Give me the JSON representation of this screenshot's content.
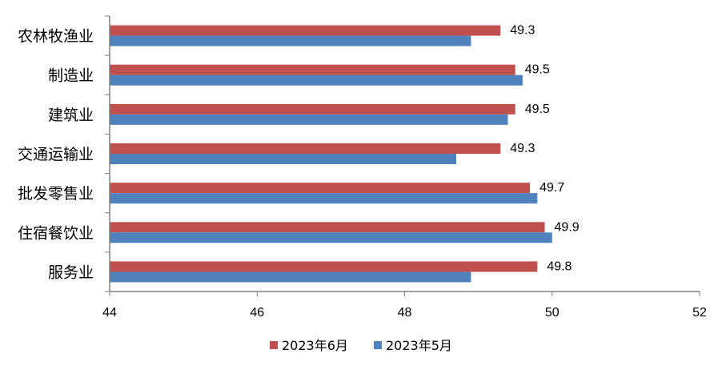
{
  "chart_data": {
    "type": "bar",
    "orientation": "horizontal",
    "categories": [
      "农林牧渔业",
      "制造业",
      "建筑业",
      "交通运输业",
      "批发零售业",
      "住宿餐饮业",
      "服务业"
    ],
    "series": [
      {
        "name": "2023年6月",
        "color": "#C0504D",
        "values": [
          49.3,
          49.5,
          49.5,
          49.3,
          49.7,
          49.9,
          49.8
        ],
        "show_labels": true
      },
      {
        "name": "2023年5月",
        "color": "#4F81BD",
        "values": [
          48.9,
          49.6,
          49.4,
          48.7,
          49.8,
          50.0,
          48.9
        ],
        "show_labels": false
      }
    ],
    "xlim": [
      44,
      52
    ],
    "xticks": [
      "44",
      "46",
      "48",
      "50",
      "52"
    ],
    "grid": false,
    "legend": "bottom"
  }
}
